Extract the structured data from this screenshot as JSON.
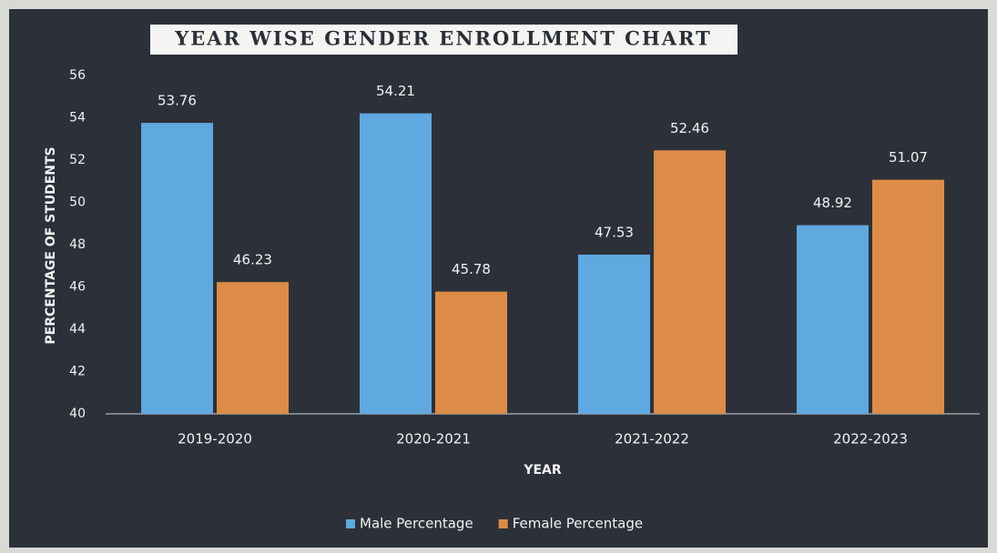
{
  "chart_data": {
    "type": "bar",
    "title": "YEAR WISE GENDER ENROLLMENT CHART",
    "x_label": "YEAR",
    "y_label": "PERCENTAGE OF STUDENTS",
    "categories": [
      "2019-2020",
      "2020-2021",
      "2021-2022",
      "2022-2023"
    ],
    "series": [
      {
        "name": "Male Percentage",
        "color": "#5fa8e0",
        "values": [
          53.76,
          54.21,
          47.53,
          48.92
        ]
      },
      {
        "name": "Female Percentage",
        "color": "#dc8c47",
        "values": [
          46.23,
          45.78,
          52.46,
          51.07
        ]
      }
    ],
    "ylim": [
      40,
      56
    ],
    "yticks": [
      40,
      42,
      44,
      46,
      48,
      50,
      52,
      54,
      56
    ],
    "legend": "bottom"
  }
}
